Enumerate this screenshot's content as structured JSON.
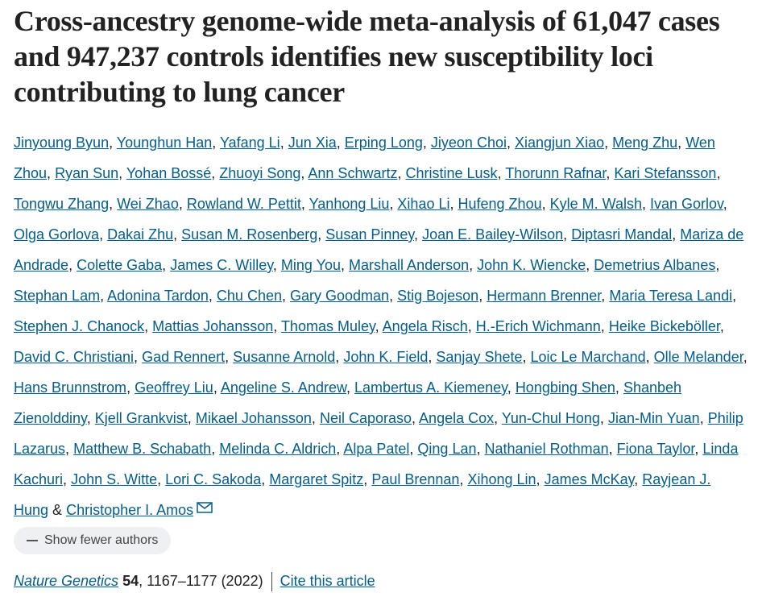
{
  "header": {
    "title": "Cross-ancestry genome-wide meta-analysis of 61,047 cases and 947,237 controls identifies new susceptibility loci contributing to lung cancer"
  },
  "authors": {
    "list": [
      "Jinyoung Byun",
      "Younghun Han",
      "Yafang Li",
      "Jun Xia",
      "Erping Long",
      "Jiyeon Choi",
      "Xiangjun Xiao",
      "Meng Zhu",
      "Wen Zhou",
      "Ryan Sun",
      "Yohan Bossé",
      "Zhuoyi Song",
      "Ann Schwartz",
      "Christine Lusk",
      "Thorunn Rafnar",
      "Kari Stefansson",
      "Tongwu Zhang",
      "Wei Zhao",
      "Rowland W. Pettit",
      "Yanhong Liu",
      "Xihao Li",
      "Hufeng Zhou",
      "Kyle M. Walsh",
      "Ivan Gorlov",
      "Olga Gorlova",
      "Dakai Zhu",
      "Susan M. Rosenberg",
      "Susan Pinney",
      "Joan E. Bailey-Wilson",
      "Diptasri Mandal",
      "Mariza de Andrade",
      "Colette Gaba",
      "James C. Willey",
      "Ming You",
      "Marshall Anderson",
      "John K. Wiencke",
      "Demetrius Albanes",
      "Stephan Lam",
      "Adonina Tardon",
      "Chu Chen",
      "Gary Goodman",
      "Stig Bojeson",
      "Hermann Brenner",
      "Maria Teresa Landi",
      "Stephen J. Chanock",
      "Mattias Johansson",
      "Thomas Muley",
      "Angela Risch",
      "H.-Erich Wichmann",
      "Heike Bickeböller",
      "David C. Christiani",
      "Gad Rennert",
      "Susanne Arnold",
      "John K. Field",
      "Sanjay Shete",
      "Loic Le Marchand",
      "Olle Melander",
      "Hans Brunnstrom",
      "Geoffrey Liu",
      "Angeline S. Andrew",
      "Lambertus A. Kiemeney",
      "Hongbing Shen",
      "Shanbeh Zienolddiny",
      "Kjell Grankvist",
      "Mikael Johansson",
      "Neil Caporaso",
      "Angela Cox",
      "Yun-Chul Hong",
      "Jian-Min Yuan",
      "Philip Lazarus",
      "Matthew B. Schabath",
      "Melinda C. Aldrich",
      "Alpa Patel",
      "Qing Lan",
      "Nathaniel Rothman",
      "Fiona Taylor",
      "Linda Kachuri",
      "John S. Witte",
      "Lori C. Sakoda",
      "Margaret Spitz",
      "Paul Brennan",
      "Xihong Lin",
      "James McKay",
      "Rayjean J. Hung",
      "Christopher I. Amos"
    ],
    "separator": ",",
    "last_separator": "&",
    "toggle": "Show fewer authors"
  },
  "citation": {
    "journal": "Nature Genetics",
    "volume": "54",
    "pages": ", 1167–1177",
    "year": "(2022)",
    "cite_link": "Cite this article"
  }
}
